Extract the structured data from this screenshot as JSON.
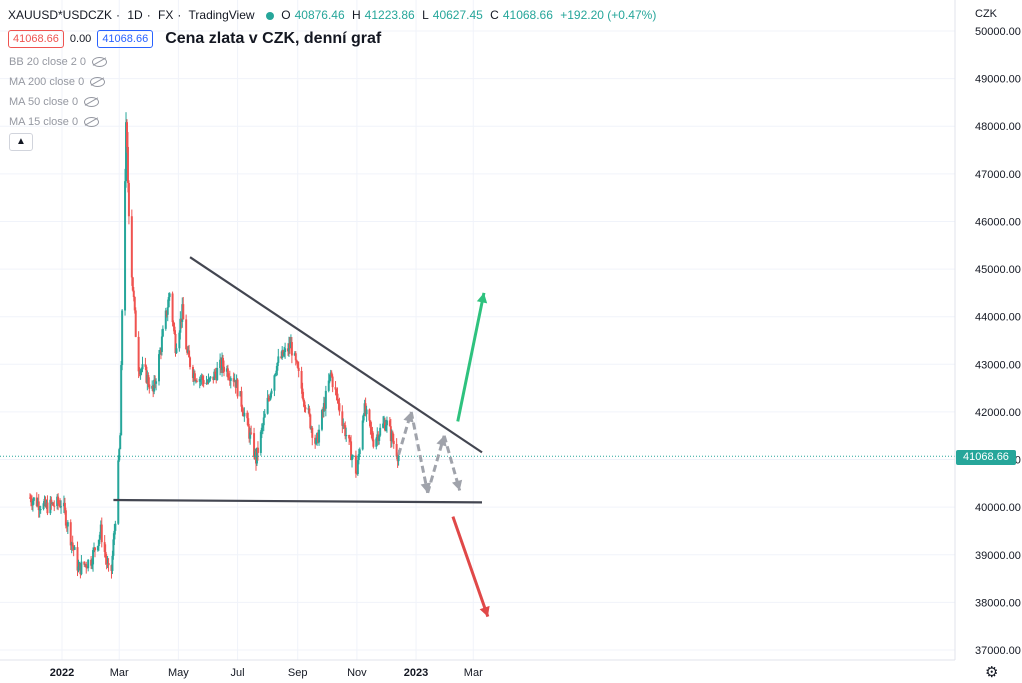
{
  "header": {
    "symbol": "XAUUSD*USDCZK",
    "interval": "1D",
    "source": "FX",
    "platform": "TradingView",
    "status_color": "#26a69a",
    "open_label": "O",
    "open": "40876.46",
    "high_label": "H",
    "high": "41223.86",
    "low_label": "L",
    "low": "40627.45",
    "close_label": "C",
    "close": "41068.66",
    "change": "+192.20 (+0.47%)"
  },
  "quote": {
    "sell": "41068.66",
    "spread": "0.00",
    "buy": "41068.66"
  },
  "annotation_title": "Cena zlata v CZK, denní graf",
  "indicators": [
    {
      "label": "BB 20 close 2 0"
    },
    {
      "label": "MA 200 close 0"
    },
    {
      "label": "MA 50 close 0"
    },
    {
      "label": "MA 15 close 0"
    }
  ],
  "collapse_icon": "chevron-up-icon",
  "settings_icon": "gear-icon",
  "colors": {
    "up": "#26a69a",
    "down": "#ef5350",
    "trendline": "#434651",
    "projection": "#a0a3ab",
    "bull_arrow": "#2ec27e",
    "bear_arrow": "#e04848"
  },
  "chart_data": {
    "type": "candlestick",
    "unit": "CZK",
    "ylim": [
      36700,
      50300
    ],
    "y_ticks": [
      "50000.00",
      "49000.00",
      "48000.00",
      "47000.00",
      "46000.00",
      "45000.00",
      "44000.00",
      "43000.00",
      "42000.00",
      "41000.00",
      "40000.00",
      "39000.00",
      "38000.00",
      "37000.00"
    ],
    "x_ticks": [
      "2022",
      "Mar",
      "May",
      "Jul",
      "Sep",
      "Nov",
      "2023",
      "Mar"
    ],
    "last_price": "41068.66",
    "anchors": [
      {
        "d": "2021-11-29",
        "p": 40200
      },
      {
        "d": "2021-12-15",
        "p": 40000
      },
      {
        "d": "2022-01-01",
        "p": 40100
      },
      {
        "d": "2022-01-18",
        "p": 38700
      },
      {
        "d": "2022-01-31",
        "p": 38900
      },
      {
        "d": "2022-02-10",
        "p": 39500
      },
      {
        "d": "2022-02-20",
        "p": 38400
      },
      {
        "d": "2022-02-25",
        "p": 39800
      },
      {
        "d": "2022-03-02",
        "p": 41500
      },
      {
        "d": "2022-03-05",
        "p": 45500
      },
      {
        "d": "2022-03-08",
        "p": 47800
      },
      {
        "d": "2022-03-14",
        "p": 45000
      },
      {
        "d": "2022-03-20",
        "p": 43000
      },
      {
        "d": "2022-03-28",
        "p": 42800
      },
      {
        "d": "2022-04-05",
        "p": 42400
      },
      {
        "d": "2022-04-14",
        "p": 43500
      },
      {
        "d": "2022-04-22",
        "p": 44500
      },
      {
        "d": "2022-04-28",
        "p": 43400
      },
      {
        "d": "2022-05-05",
        "p": 44100
      },
      {
        "d": "2022-05-10",
        "p": 43200
      },
      {
        "d": "2022-05-17",
        "p": 42800
      },
      {
        "d": "2022-06-01",
        "p": 42600
      },
      {
        "d": "2022-06-15",
        "p": 43000
      },
      {
        "d": "2022-06-28",
        "p": 42700
      },
      {
        "d": "2022-07-05",
        "p": 42200
      },
      {
        "d": "2022-07-20",
        "p": 41000
      },
      {
        "d": "2022-08-01",
        "p": 42200
      },
      {
        "d": "2022-08-10",
        "p": 43000
      },
      {
        "d": "2022-08-25",
        "p": 43400
      },
      {
        "d": "2022-09-05",
        "p": 42500
      },
      {
        "d": "2022-09-20",
        "p": 41300
      },
      {
        "d": "2022-10-05",
        "p": 42800
      },
      {
        "d": "2022-10-20",
        "p": 41600
      },
      {
        "d": "2022-11-01",
        "p": 40700
      },
      {
        "d": "2022-11-08",
        "p": 42100
      },
      {
        "d": "2022-11-18",
        "p": 41400
      },
      {
        "d": "2022-12-01",
        "p": 41800
      },
      {
        "d": "2022-12-14",
        "p": 41069
      }
    ],
    "trendlines": [
      {
        "from": {
          "d": "2022-05-13",
          "p": 45250
        },
        "to": {
          "d": "2023-03-10",
          "p": 41150
        }
      },
      {
        "from": {
          "d": "2022-02-23",
          "p": 40150
        },
        "to": {
          "d": "2023-03-10",
          "p": 40100
        }
      }
    ],
    "projection_path": [
      {
        "d": "2022-12-14",
        "p": 41100
      },
      {
        "d": "2022-12-27",
        "p": 42000
      },
      {
        "d": "2023-01-13",
        "p": 40300
      },
      {
        "d": "2023-01-30",
        "p": 41500
      },
      {
        "d": "2023-02-15",
        "p": 40350
      }
    ],
    "arrows": [
      {
        "from": {
          "d": "2023-02-13",
          "p": 41800
        },
        "to": {
          "d": "2023-03-12",
          "p": 44500
        }
      },
      {
        "from": {
          "d": "2023-02-08",
          "p": 39800
        },
        "to": {
          "d": "2023-03-16",
          "p": 37700
        }
      }
    ]
  }
}
